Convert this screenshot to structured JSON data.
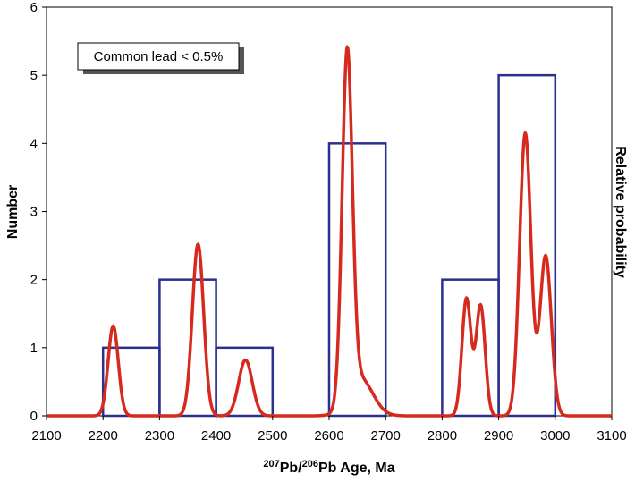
{
  "chart_data": {
    "type": "bar",
    "title": "",
    "xlabel": {
      "sup1": "207",
      "part1": "Pb/",
      "sup2": "206",
      "part2": "Pb Age, Ma"
    },
    "ylabel": "Number",
    "y2label": "Relative probability",
    "xlim": [
      2100,
      3100
    ],
    "ylim": [
      0,
      6
    ],
    "x_ticks": [
      "2100",
      "2200",
      "2300",
      "2400",
      "2500",
      "2600",
      "2700",
      "2800",
      "2900",
      "3000",
      "3100"
    ],
    "y_ticks": [
      "0",
      "1",
      "2",
      "3",
      "4",
      "5",
      "6"
    ],
    "histogram": {
      "name": "Number",
      "bin_edges": [
        [
          2200,
          2300
        ],
        [
          2300,
          2400
        ],
        [
          2400,
          2500
        ],
        [
          2600,
          2700
        ],
        [
          2800,
          2900
        ],
        [
          2900,
          3000
        ]
      ],
      "values": [
        1,
        2,
        1,
        4,
        2,
        5
      ],
      "color": "#2b2f8f"
    },
    "probability_curve": {
      "name": "Relative probability",
      "color": "#d62a1e",
      "peaks": [
        {
          "center": 2218,
          "height": 1.32,
          "sigma": 9
        },
        {
          "center": 2368,
          "height": 2.52,
          "sigma": 10
        },
        {
          "center": 2452,
          "height": 0.82,
          "sigma": 12
        },
        {
          "center": 2632,
          "height": 5.1,
          "sigma": 9
        },
        {
          "center": 2655,
          "height": 0.55,
          "sigma": 22
        },
        {
          "center": 2843,
          "height": 1.72,
          "sigma": 8
        },
        {
          "center": 2868,
          "height": 1.62,
          "sigma": 8
        },
        {
          "center": 2947,
          "height": 4.15,
          "sigma": 10
        },
        {
          "center": 2983,
          "height": 2.35,
          "sigma": 10
        }
      ]
    },
    "legend": {
      "text": "Common lead < 0.5%",
      "position": "top-left"
    }
  }
}
